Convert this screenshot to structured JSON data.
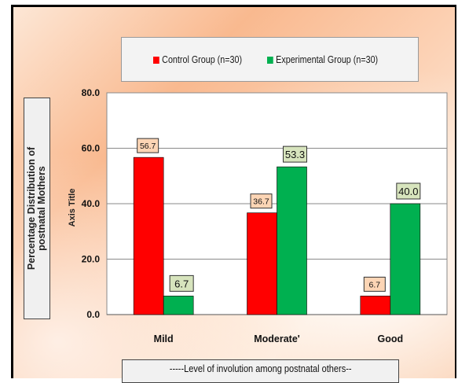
{
  "chart_data": {
    "type": "bar",
    "categories": [
      "Mild",
      "Moderate'",
      "Good"
    ],
    "series": [
      {
        "name": "Control Group (n=30)",
        "color": "#ff0000",
        "values": [
          56.7,
          36.7,
          6.7
        ],
        "labels": [
          "56.7",
          "36.7",
          "6.7"
        ]
      },
      {
        "name": "Experimental Group (n=30)",
        "color": "#00b050",
        "values": [
          6.7,
          53.3,
          40.0
        ],
        "labels": [
          "6.7",
          "53.3",
          "40.0"
        ]
      }
    ],
    "ylim": [
      0,
      80
    ],
    "yticks": [
      0,
      20,
      40,
      60,
      80
    ],
    "ytick_labels": [
      "0.0",
      "20.0",
      "40.0",
      "60.0",
      "80.0"
    ],
    "ylabel": "Axis Title",
    "ylabel_outer": [
      "Percentage  Distribution of",
      "postnatal Mothers"
    ],
    "xlabel": "-----Level of involution among postnatal others--",
    "grid": true,
    "legend_position": "top"
  }
}
